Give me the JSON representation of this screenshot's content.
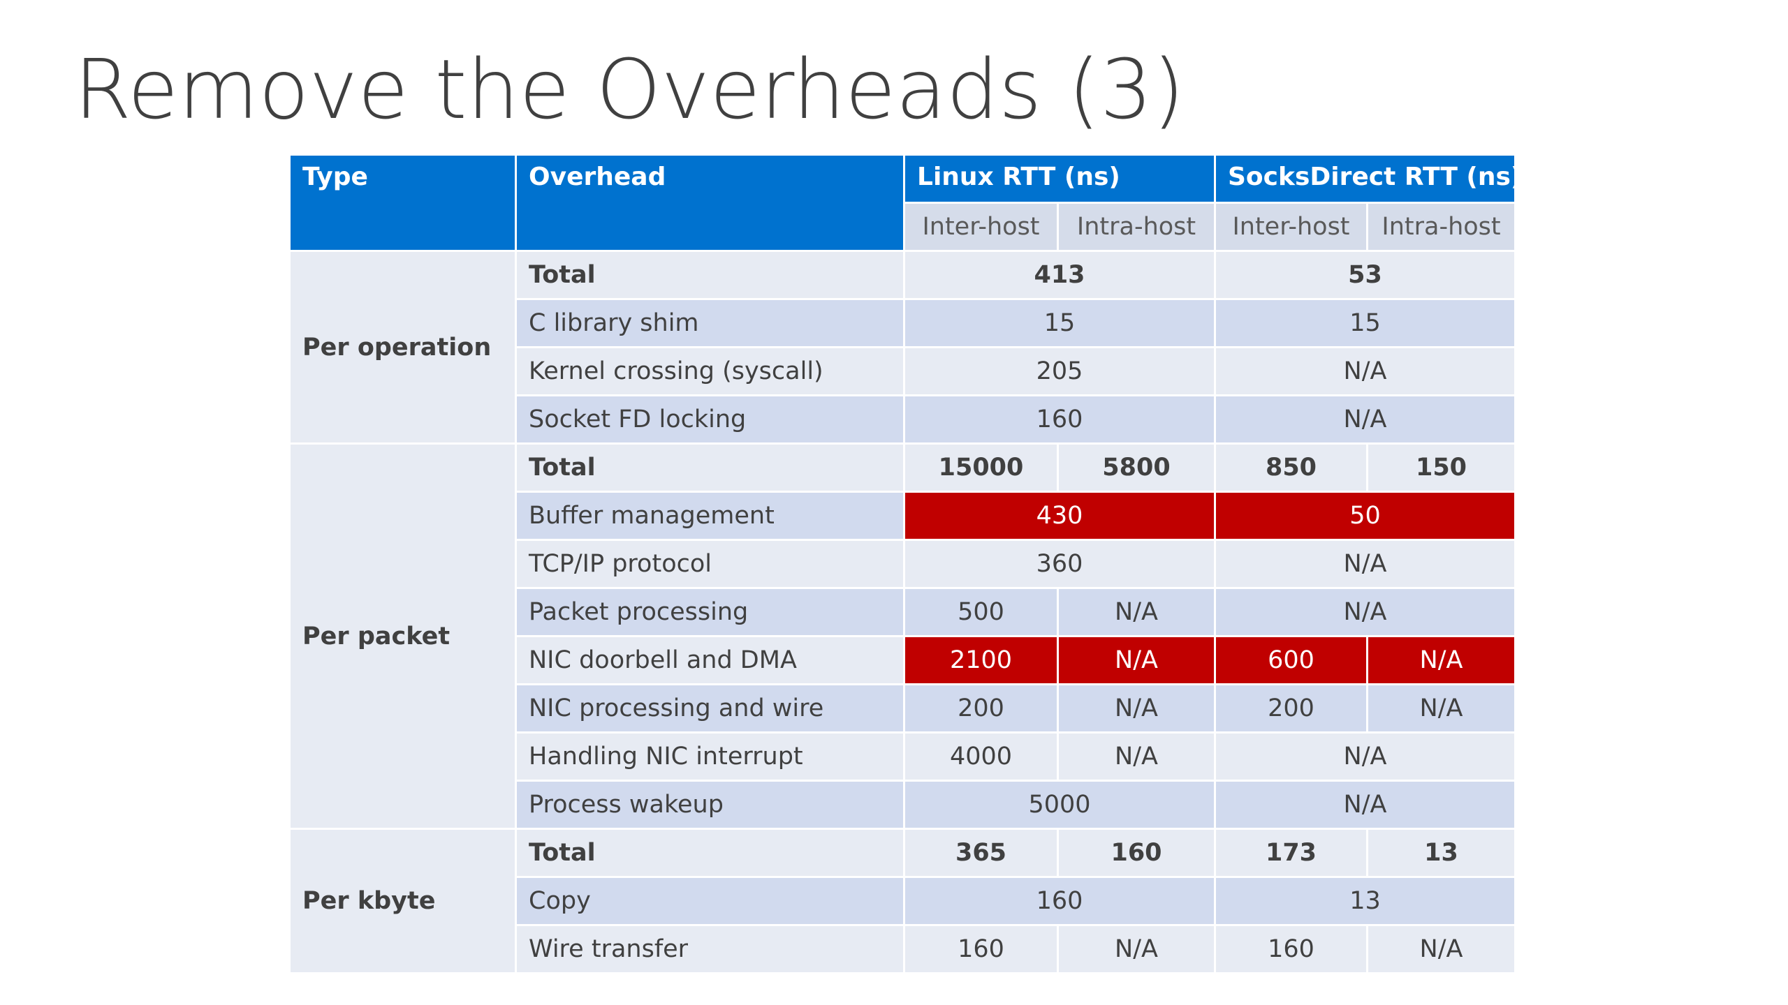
{
  "title": "Remove the Overheads (3)",
  "colors": {
    "header_blue": "#0072cf",
    "highlight_red": "#c00000",
    "row_light": "#e7ebf3",
    "row_dark": "#d1daee"
  },
  "table": {
    "headers": {
      "type": "Type",
      "overhead": "Overhead",
      "linux": "Linux RTT (ns)",
      "socksdirect": "SocksDirect RTT (ns)"
    },
    "subheaders": {
      "linux_inter": "Inter-host",
      "linux_intra": "Intra-host",
      "sd_inter": "Inter-host",
      "sd_intra": "Intra-host"
    },
    "groups": [
      {
        "type": "Per operation",
        "rows": [
          {
            "overhead": "Total",
            "linux": "413",
            "sd": "53"
          },
          {
            "overhead": "C library shim",
            "linux": "15",
            "sd": "15"
          },
          {
            "overhead": "Kernel crossing (syscall)",
            "linux": "205",
            "sd": "N/A"
          },
          {
            "overhead": "Socket FD locking",
            "linux": "160",
            "sd": "N/A"
          }
        ]
      },
      {
        "type": "Per packet",
        "rows": [
          {
            "overhead": "Total",
            "linux_inter": "15000",
            "linux_intra": "5800",
            "sd_inter": "850",
            "sd_intra": "150"
          },
          {
            "overhead": "Buffer management",
            "linux": "430",
            "sd": "50"
          },
          {
            "overhead": "TCP/IP protocol",
            "linux": "360",
            "sd": "N/A"
          },
          {
            "overhead": "Packet processing",
            "linux_inter": "500",
            "linux_intra": "N/A",
            "sd": "N/A"
          },
          {
            "overhead": "NIC doorbell and DMA",
            "linux_inter": "2100",
            "linux_intra": "N/A",
            "sd_inter": "600",
            "sd_intra": "N/A"
          },
          {
            "overhead": "NIC processing and wire",
            "linux_inter": "200",
            "linux_intra": "N/A",
            "sd_inter": "200",
            "sd_intra": "N/A"
          },
          {
            "overhead": "Handling NIC interrupt",
            "linux_inter": "4000",
            "linux_intra": "N/A",
            "sd": "N/A"
          },
          {
            "overhead": "Process wakeup",
            "linux": "5000",
            "sd": "N/A"
          }
        ]
      },
      {
        "type": "Per kbyte",
        "rows": [
          {
            "overhead": "Total",
            "linux_inter": "365",
            "linux_intra": "160",
            "sd_inter": "173",
            "sd_intra": "13"
          },
          {
            "overhead": "Copy",
            "linux": "160",
            "sd": "13"
          },
          {
            "overhead": "Wire transfer",
            "linux_inter": "160",
            "linux_intra": "N/A",
            "sd_inter": "160",
            "sd_intra": "N/A"
          }
        ]
      }
    ]
  }
}
